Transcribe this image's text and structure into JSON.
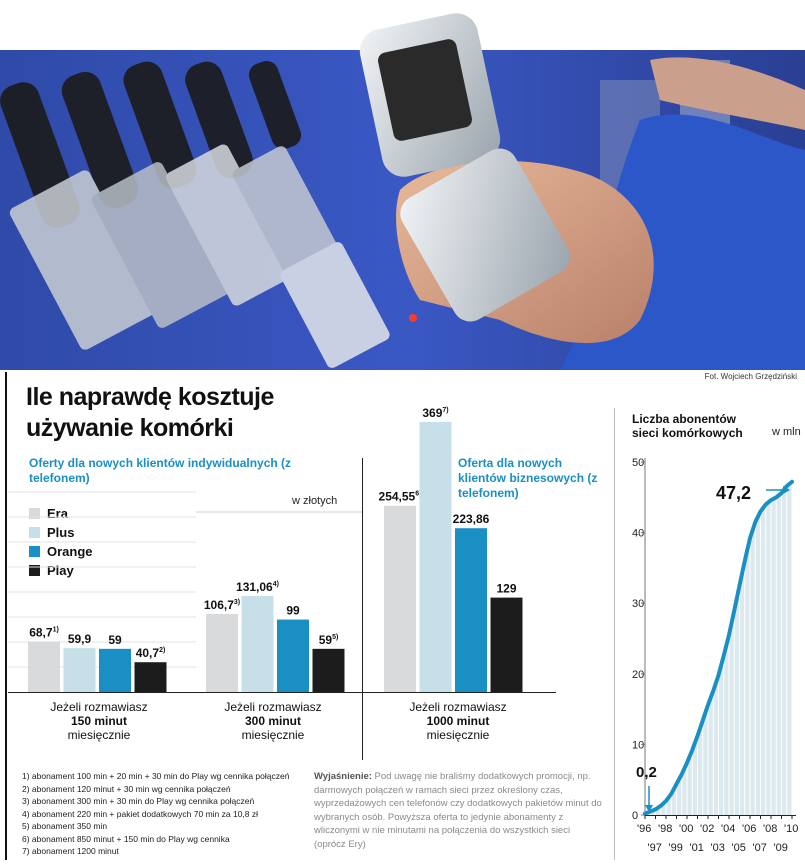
{
  "photo_credit": "Fot. Wojciech Grzędziński",
  "title_line1": "Ile naprawdę kosztuje",
  "title_line2": "używanie komórki",
  "subtitle_individual": "Oferty dla nowych klientów indywidualnych (z telefonem)",
  "subtitle_business": "Oferta dla nowych klientów biznesowych (z telefonem)",
  "unit_label": "w złotych",
  "colors": {
    "Era": "#d9dadb",
    "Plus": "#c6dfe8",
    "Orange": "#1a8fc4",
    "Play": "#1c1c1c",
    "line": "#1a8fc4",
    "area": "#dce9ee"
  },
  "chart_data": [
    {
      "type": "bar",
      "unit": "w złotych",
      "categories": [
        {
          "line1": "Jeżeli rozmawiasz",
          "line2": "150 minut",
          "line3": "miesięcznie"
        },
        {
          "line1": "Jeżeli rozmawiasz",
          "line2": "300 minut",
          "line3": "miesięcznie"
        },
        {
          "line1": "Jeżeli rozmawiasz",
          "line2": "1000 minut",
          "line3": "miesięcznie"
        }
      ],
      "series": [
        {
          "name": "Era",
          "values": [
            68.7,
            106.7,
            254.55
          ],
          "labels": [
            "68,7",
            "106,7",
            "254,55"
          ],
          "notes": [
            "1)",
            "3)",
            "6)"
          ]
        },
        {
          "name": "Plus",
          "values": [
            59.9,
            131.06,
            369
          ],
          "labels": [
            "59,9",
            "131,06",
            "369"
          ],
          "notes": [
            "",
            "4)",
            "7)"
          ]
        },
        {
          "name": "Orange",
          "values": [
            59,
            99,
            223.86
          ],
          "labels": [
            "59",
            "99",
            "223,86"
          ],
          "notes": [
            "",
            "",
            ""
          ]
        },
        {
          "name": "Play",
          "values": [
            40.7,
            59,
            129
          ],
          "labels": [
            "40,7",
            "59",
            "129"
          ],
          "notes": [
            "2)",
            "5)",
            ""
          ]
        }
      ]
    },
    {
      "type": "area",
      "title": "Liczba abonentów sieci komórkowych",
      "unit": "w mln",
      "ylim": [
        0,
        50
      ],
      "yticks": [
        0,
        10,
        20,
        30,
        40,
        50
      ],
      "xtick_labels": [
        "'96",
        "'97",
        "'98",
        "'99",
        "'00",
        "'01",
        "'02",
        "'03",
        "'04",
        "'05",
        "'06",
        "'07",
        "'08",
        "'09",
        "'10"
      ],
      "x": [
        1996,
        1996.5,
        1997,
        1997.5,
        1998,
        1998.5,
        1999,
        1999.5,
        2000,
        2000.5,
        2001,
        2001.5,
        2002,
        2002.5,
        2003,
        2003.5,
        2004,
        2004.5,
        2005,
        2005.5,
        2006,
        2006.5,
        2007,
        2007.5,
        2008,
        2008.5,
        2009,
        2009.5,
        2010
      ],
      "y": [
        0.2,
        0.5,
        0.8,
        1.3,
        2.0,
        3.0,
        4.4,
        5.8,
        7.4,
        9.2,
        11.2,
        13.4,
        15.6,
        17.6,
        19.8,
        22.6,
        25.5,
        29.0,
        32.5,
        36.0,
        39.2,
        41.5,
        43.0,
        44.0,
        44.6,
        45.0,
        45.6,
        46.6,
        47.2
      ],
      "annotations": [
        {
          "label": "0,2",
          "x": 1996,
          "y": 0.2
        },
        {
          "label": "47,2",
          "x": 2010,
          "y": 47.2
        }
      ]
    }
  ],
  "footnotes": [
    "1) abonament 100 min + 20 min + 30 min do Play wg cennika połączeń",
    "2) abonament 120 minut + 30 min wg cennika połączeń",
    "3) abonament 300 min + 30 min do Play wg cennika połączeń",
    "4) abonament 220 min + pakiet dodatkowych 70 min za 10,8 zł",
    "5) abonament 350 min",
    "6) abonament 850 minut + 150 min do Play wg cennika",
    "7) abonament 1200 minut"
  ],
  "explanation_heading": "Wyjaśnienie:",
  "explanation_text": "Pod uwagę nie braliśmy dodatkowych promocji, np. darmowych połączeń w ramach sieci przez określony czas, wyprzedażowych cen telefonów czy dodatkowych pakietów minut do wybranych osób. Powyższa oferta to jedynie abonamenty z wliczonymi w nie minutami na połączenia do wszystkich sieci (oprócz Ery)"
}
